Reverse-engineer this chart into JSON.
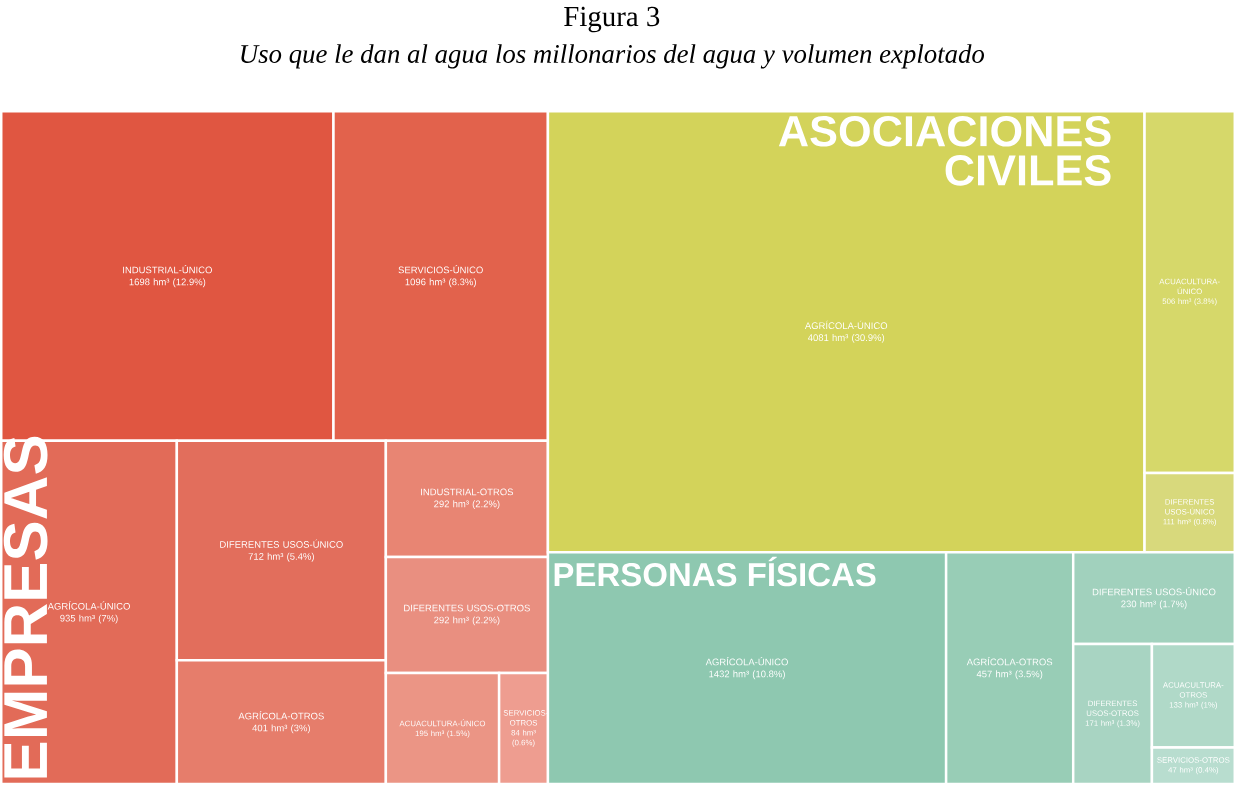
{
  "chart_data": {
    "type": "other",
    "title": "Figura 3",
    "subtitle": "Uso que le dan al agua los millonarios del agua y volumen explotado",
    "categories": [
      "INDUSTRIAL-ÚNICO",
      "SERVICIOS-ÚNICO",
      "AGRÍCOLA-ÚNICO",
      "DIFERENTES USOS-ÚNICO",
      "AGRÍCOLA-OTROS",
      "INDUSTRIAL-OTROS",
      "DIFERENTES USOS-OTROS",
      "ACUACULTURA-ÚNICO",
      "SERVICIOS-OTROS",
      "AGRÍCOLA-ÚNICO",
      "ACUACULTURA-ÚNICO",
      "DIFERENTES USOS-ÚNICO",
      "AGRÍCOLA-ÚNICO",
      "AGRÍCOLA-OTROS",
      "DIFERENTES USOS-ÚNICO",
      "DIFERENTES USOS-OTROS",
      "ACUACULTURA-OTROS",
      "SERVICIOS-OTROS"
    ],
    "series": [
      {
        "name": "EMPRESAS",
        "values": [
          1698,
          1096,
          935,
          712,
          401,
          292,
          292,
          195,
          84,
          null,
          null,
          null,
          null,
          null,
          null,
          null,
          null,
          null
        ],
        "value_labels": [
          "1698 hm³ (12.9%)",
          "1096 hm³ (8.3%)",
          "935 hm³ (7%)",
          "712 hm³ (5.4%)",
          "401 hm³ (3%)",
          "292 hm³ (2.2%)",
          "292 hm³ (2.2%)",
          "195 hm³ (1.5%)",
          "84 hm³ (0.6%)",
          null,
          null,
          null,
          null,
          null,
          null,
          null,
          null,
          null
        ],
        "colors": [
          "#e05641",
          "#e2624c",
          "#e26b58",
          "#e26e5c",
          "#e67d6b",
          "#e88573",
          "#e98f80",
          "#eb9585",
          "#ee9d90",
          null,
          null,
          null,
          null,
          null,
          null,
          null,
          null,
          null
        ]
      },
      {
        "name": "ASOCIACIONES CIVILES",
        "values": [
          null,
          null,
          null,
          null,
          null,
          null,
          null,
          null,
          null,
          4081,
          506,
          111,
          null,
          null,
          null,
          null,
          null,
          null
        ],
        "value_labels": [
          null,
          null,
          null,
          null,
          null,
          null,
          null,
          null,
          null,
          "4081 hm³ (30.9%)",
          "506 hm³ (3.8%)",
          "111 hm³ (0.8%)",
          null,
          null,
          null,
          null,
          null,
          null
        ],
        "colors": [
          null,
          null,
          null,
          null,
          null,
          null,
          null,
          null,
          null,
          "#d3d35a",
          "#d6d86a",
          "#d8d97c",
          null,
          null,
          null,
          null,
          null,
          null
        ]
      },
      {
        "name": "PERSONAS FÍSICAS",
        "values": [
          null,
          null,
          null,
          null,
          null,
          null,
          null,
          null,
          null,
          null,
          null,
          null,
          1432,
          457,
          230,
          171,
          133,
          47
        ],
        "value_labels": [
          null,
          null,
          null,
          null,
          null,
          null,
          null,
          null,
          null,
          null,
          null,
          null,
          "1432 hm³ (10.8%)",
          "457 hm³ (3.5%)",
          "230 hm³ (1.7%)",
          "171 hm³ (1.3%)",
          "133 hm³ (1%)",
          "47 hm³ (0.4%)"
        ],
        "colors": [
          null,
          null,
          null,
          null,
          null,
          null,
          null,
          null,
          null,
          null,
          null,
          null,
          "#8ec8b0",
          "#98cdb6",
          "#a1d1bd",
          "#a8d4c2",
          "#b0d9c8",
          "#b8ddcf"
        ]
      }
    ]
  }
}
